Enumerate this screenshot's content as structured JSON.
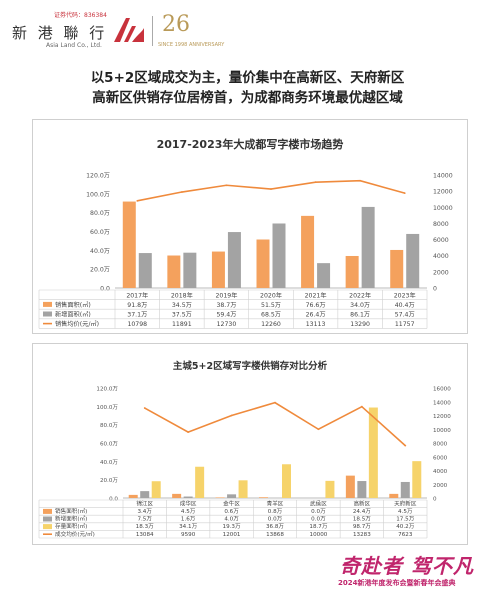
{
  "brand": {
    "code": "证券代码：836384",
    "name_cn": "新 港 聯 行",
    "name_en": "Asia Land Co., Ltd.",
    "anniversary": "26",
    "anniversary_sub": "SINCE 1998 ANNIVERSARY"
  },
  "headline": {
    "line1": "以5+2区域成交为主，量价集中在高新区、天府新区",
    "line2": "高新区供销存位居榜首，为成都商务环境最优越区域"
  },
  "footer": {
    "slogan": "奇赴者 驾不凡",
    "sub": "2024新港年度发布会暨新春年会盛典"
  },
  "colors": {
    "sales": "#f4a15d",
    "new": "#a3a3a3",
    "stock": "#f6d36a",
    "price": "#ef8a3c"
  },
  "chart_data": [
    {
      "type": "bar",
      "title": "2017-2023年大成都写字楼市场趋势",
      "categories": [
        "2017年",
        "2018年",
        "2019年",
        "2020年",
        "2021年",
        "2022年",
        "2023年"
      ],
      "series": [
        {
          "name": "销售面积(㎡)",
          "kind": "bar",
          "axis": "left",
          "values": [
            91.8,
            34.5,
            38.7,
            51.5,
            76.6,
            34.0,
            40.4
          ],
          "labels": [
            "91.8万",
            "34.5万",
            "38.7万",
            "51.5万",
            "76.6万",
            "34.0万",
            "40.4万"
          ]
        },
        {
          "name": "新增面积(㎡)",
          "kind": "bar",
          "axis": "left",
          "values": [
            37.1,
            37.5,
            59.4,
            68.5,
            26.4,
            86.1,
            57.4
          ],
          "labels": [
            "37.1万",
            "37.5万",
            "59.4万",
            "68.5万",
            "26.4万",
            "86.1万",
            "57.4万"
          ]
        },
        {
          "name": "销售均价(元/㎡)",
          "kind": "line",
          "axis": "right",
          "values": [
            10798,
            11891,
            12730,
            12260,
            13113,
            13290,
            11757
          ],
          "labels": [
            "10798",
            "11891",
            "12730",
            "12260",
            "13113",
            "13290",
            "11757"
          ]
        }
      ],
      "left_axis": {
        "ticks": [
          "0.0",
          "20.0万",
          "40.0万",
          "60.0万",
          "80.0万",
          "100.0万",
          "120.0万"
        ],
        "max": 120
      },
      "right_axis": {
        "ticks": [
          "0",
          "2000",
          "4000",
          "6000",
          "8000",
          "10000",
          "12000",
          "14000"
        ],
        "max": 14000
      },
      "legend": "bottom-table",
      "grid": false
    },
    {
      "type": "bar",
      "title": "主城5+2区域写字楼供销存对比分析",
      "categories": [
        "锦江区",
        "成华区",
        "金牛区",
        "青羊区",
        "武侯区",
        "高新区",
        "天府新区"
      ],
      "series": [
        {
          "name": "销售面积(㎡)",
          "kind": "bar",
          "axis": "left",
          "values": [
            3.4,
            4.5,
            0.6,
            0.8,
            0.0,
            24.4,
            4.5
          ],
          "labels": [
            "3.4万",
            "4.5万",
            "0.6万",
            "0.8万",
            "0.0万",
            "24.4万",
            "4.5万"
          ]
        },
        {
          "name": "新增面积(㎡)",
          "kind": "bar",
          "axis": "left",
          "values": [
            7.5,
            1.6,
            4.0,
            0.0,
            0.0,
            18.5,
            17.5
          ],
          "labels": [
            "7.5万",
            "1.6万",
            "4.0万",
            "0.0万",
            "0.0万",
            "18.5万",
            "17.5万"
          ]
        },
        {
          "name": "存量面积(㎡)",
          "kind": "bar",
          "axis": "left",
          "values": [
            18.3,
            34.1,
            19.3,
            36.8,
            18.7,
            98.7,
            40.2
          ],
          "labels": [
            "18.3万",
            "34.1万",
            "19.3万",
            "36.8万",
            "18.7万",
            "98.7万",
            "40.2万"
          ]
        },
        {
          "name": "成交均价(元/㎡)",
          "kind": "line",
          "axis": "right",
          "values": [
            13084,
            9590,
            12001,
            13868,
            10000,
            13283,
            7623
          ],
          "labels": [
            "13084",
            "9590",
            "12001",
            "13868",
            "10000",
            "13283",
            "7623"
          ]
        }
      ],
      "left_axis": {
        "ticks": [
          "0.0",
          "20.0万",
          "40.0万",
          "60.0万",
          "80.0万",
          "100.0万",
          "120.0万"
        ],
        "max": 120
      },
      "right_axis": {
        "ticks": [
          "0",
          "2000",
          "4000",
          "6000",
          "8000",
          "10000",
          "12000",
          "14000",
          "16000"
        ],
        "max": 16000
      },
      "legend": "bottom-table",
      "grid": false
    }
  ]
}
